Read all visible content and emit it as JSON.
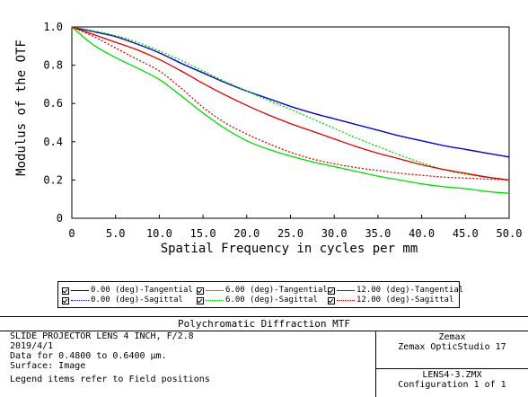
{
  "chart_data": {
    "type": "line",
    "title": "",
    "xlabel": "Spatial Frequency in cycles per mm",
    "ylabel": "Modulus of the OTF",
    "xlim": [
      0,
      50
    ],
    "ylim": [
      0,
      1.0
    ],
    "x_ticks": [
      "0",
      "5.0",
      "10.0",
      "15.0",
      "20.0",
      "25.0",
      "30.0",
      "35.0",
      "40.0",
      "45.0",
      "50.0"
    ],
    "y_ticks": [
      "0",
      "0.2",
      "0.4",
      "0.6",
      "0.8",
      "1.0"
    ],
    "grid": false,
    "x": [
      0,
      2.5,
      5,
      7.5,
      10,
      12.5,
      15,
      17.5,
      20,
      22.5,
      25,
      27.5,
      30,
      32.5,
      35,
      37.5,
      40,
      42.5,
      45,
      47.5,
      50
    ],
    "series": [
      {
        "name": "0.00 (deg)-Tangential",
        "color": "#0000cc",
        "dash": "solid",
        "values": [
          1.0,
          0.975,
          0.95,
          0.91,
          0.865,
          0.81,
          0.76,
          0.71,
          0.665,
          0.625,
          0.585,
          0.55,
          0.52,
          0.49,
          0.46,
          0.43,
          0.405,
          0.38,
          0.36,
          0.34,
          0.32
        ]
      },
      {
        "name": "0.00 (deg)-Sagittal",
        "color": "#0000cc",
        "dash": "dotted",
        "values": [
          1.0,
          0.975,
          0.95,
          0.91,
          0.865,
          0.81,
          0.76,
          0.71,
          0.665,
          0.625,
          0.585,
          0.55,
          0.52,
          0.49,
          0.46,
          0.43,
          0.405,
          0.38,
          0.36,
          0.34,
          0.32
        ]
      },
      {
        "name": "6.00 (deg)-Tangential",
        "color": "#00dd00",
        "dash": "solid",
        "values": [
          1.0,
          0.905,
          0.84,
          0.785,
          0.725,
          0.64,
          0.55,
          0.47,
          0.405,
          0.36,
          0.325,
          0.295,
          0.27,
          0.245,
          0.22,
          0.2,
          0.18,
          0.165,
          0.155,
          0.14,
          0.13
        ]
      },
      {
        "name": "6.00 (deg)-Sagittal",
        "color": "#00dd00",
        "dash": "dotted",
        "values": [
          1.0,
          0.98,
          0.955,
          0.92,
          0.875,
          0.825,
          0.77,
          0.715,
          0.665,
          0.615,
          0.57,
          0.52,
          0.47,
          0.42,
          0.375,
          0.33,
          0.29,
          0.255,
          0.23,
          0.215,
          0.2
        ]
      },
      {
        "name": "12.00 (deg)-Tangential",
        "color": "#dd0000",
        "dash": "solid",
        "values": [
          1.0,
          0.96,
          0.92,
          0.88,
          0.83,
          0.77,
          0.705,
          0.645,
          0.59,
          0.54,
          0.495,
          0.455,
          0.415,
          0.375,
          0.34,
          0.31,
          0.28,
          0.255,
          0.235,
          0.215,
          0.2
        ]
      },
      {
        "name": "12.00 (deg)-Sagittal",
        "color": "#dd0000",
        "dash": "dotted",
        "values": [
          1.0,
          0.95,
          0.89,
          0.83,
          0.77,
          0.68,
          0.58,
          0.5,
          0.44,
          0.39,
          0.345,
          0.31,
          0.285,
          0.265,
          0.25,
          0.235,
          0.225,
          0.215,
          0.21,
          0.205,
          0.2
        ]
      }
    ]
  },
  "legend": [
    {
      "label": "0.00 (deg)-Tangential",
      "color": "#0000cc",
      "dash": "solid"
    },
    {
      "label": "0.00 (deg)-Sagittal",
      "color": "#0000cc",
      "dash": "dotted"
    },
    {
      "label": "6.00 (deg)-Tangential",
      "color": "#00dd00",
      "dash": "solid"
    },
    {
      "label": "6.00 (deg)-Sagittal",
      "color": "#00dd00",
      "dash": "dotted"
    },
    {
      "label": "12.00 (deg)-Tangential",
      "color": "#dd0000",
      "dash": "solid"
    },
    {
      "label": "12.00 (deg)-Sagittal",
      "color": "#dd0000",
      "dash": "dotted"
    }
  ],
  "info": {
    "title": "Polychromatic Diffraction MTF",
    "lens_title": "SLIDE PROJECTOR LENS 4 INCH, F/2.8",
    "date": "2019/4/1",
    "data_range": "Data for 0.4800 to 0.6400 µm.",
    "surface": "Surface: Image",
    "legend_note": "Legend items refer to Field positions",
    "company": "Zemax",
    "product": "Zemax OpticStudio 17",
    "file": "LENS4-3.ZMX",
    "configuration": "Configuration 1 of 1"
  }
}
